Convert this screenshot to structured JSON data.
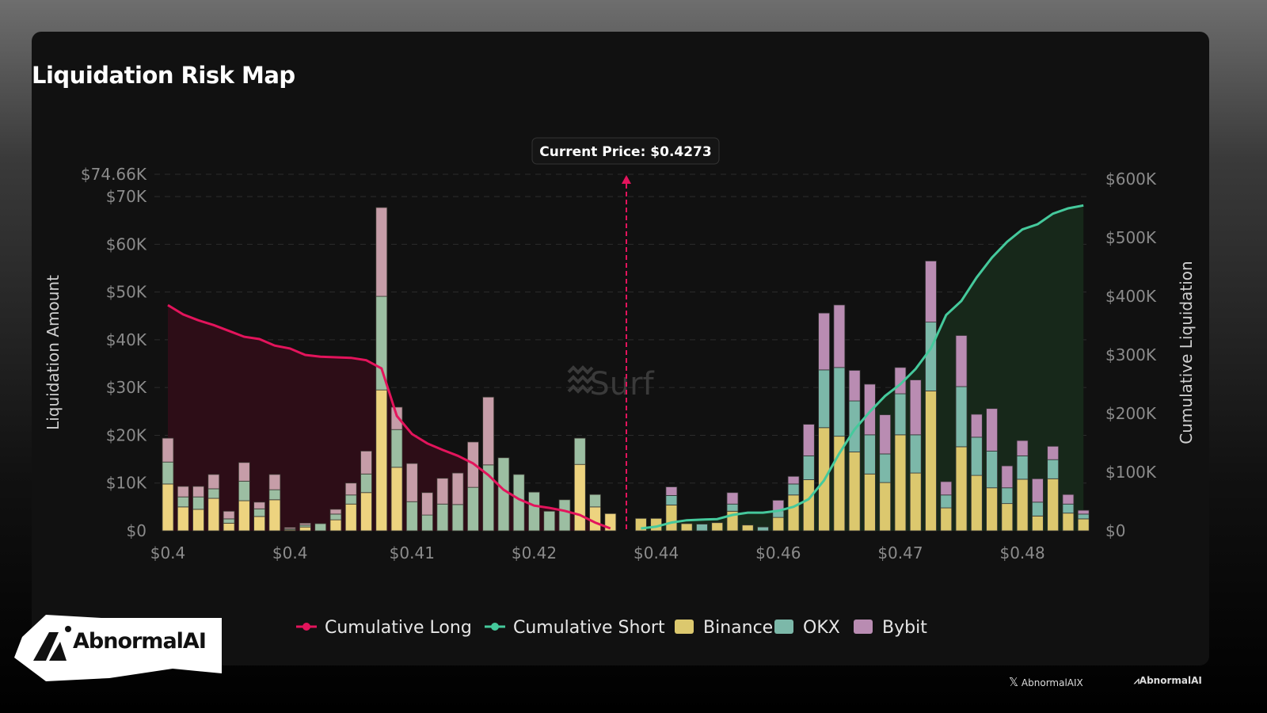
{
  "title": "Liquidation Risk Map",
  "watermark": "Surf",
  "brand": {
    "logo_text": "AbnormalAI",
    "footer_handle": "AbnormalAIX",
    "footer_logo": "AbnormalAI"
  },
  "colors": {
    "binance": "#dcc86e",
    "okx": "#7cb8a9",
    "bybit": "#b98cb2",
    "long": "#e3145c",
    "short": "#45c99c",
    "long_fill": "#2d0d17",
    "short_fill": "#17281a"
  },
  "chart_data": {
    "type": "bar",
    "title": "Liquidation Risk Map",
    "annotation": "Current Price: $0.4273",
    "current_price_slot": 30,
    "ylabel": "Liquidation Amount",
    "y2label": "Cumulative Liquidation",
    "ylim": [
      0,
      74.66
    ],
    "y2lim": [
      0,
      600
    ],
    "y_ticks": [
      "$0",
      "$10K",
      "$20K",
      "$30K",
      "$40K",
      "$50K",
      "$60K",
      "$70K",
      "$74.66K"
    ],
    "y_tick_values": [
      0,
      10,
      20,
      30,
      40,
      50,
      60,
      70,
      74.66
    ],
    "y2_ticks": [
      "$0",
      "$100K",
      "$200K",
      "$300K",
      "$400K",
      "$500K",
      "$600K"
    ],
    "y2_tick_values": [
      0,
      100,
      200,
      300,
      400,
      500,
      600
    ],
    "x_ticks": [
      "$0.4",
      "$0.4",
      "$0.41",
      "$0.42",
      "$0.44",
      "$0.46",
      "$0.47",
      "$0.48"
    ],
    "x_tick_slots": [
      0,
      8,
      16,
      24,
      32,
      40,
      48,
      56
    ],
    "units": "K USD",
    "legend": [
      "Cumulative Long",
      "Cumulative Short",
      "Binance",
      "OKX",
      "Bybit"
    ],
    "legend_position": "bottom",
    "grid": true,
    "slots": 61,
    "series": [
      {
        "name": "Binance",
        "values": [
          9.8,
          5,
          4.5,
          6.8,
          1.6,
          6.3,
          3,
          6.5,
          0.2,
          0.8,
          0,
          2.3,
          5.6,
          8,
          29.5,
          13.3,
          0,
          0,
          0,
          0,
          0,
          0,
          0,
          0,
          0,
          0,
          0,
          13.9,
          5,
          3.6,
          null,
          2.6,
          2.6,
          5.4,
          1.5,
          0,
          1.7,
          4.1,
          1.2,
          0,
          2.8,
          7.5,
          10.7,
          21.6,
          19.8,
          16.5,
          11.9,
          10.1,
          20.1,
          12.1,
          29.3,
          4.8,
          17.6,
          11.6,
          9,
          5.7,
          10.8,
          3.1,
          10.9,
          3.7,
          2.5
        ]
      },
      {
        "name": "OKX",
        "values": [
          4.6,
          2.1,
          2.6,
          2,
          0.9,
          4.1,
          1.6,
          2.1,
          0.2,
          0.4,
          1.5,
          1.2,
          1.9,
          3.9,
          19.6,
          7.9,
          6.1,
          3.3,
          5.6,
          5.5,
          9.1,
          13.8,
          15.3,
          11.8,
          8.1,
          4.1,
          6.5,
          5.5,
          2.6,
          0,
          null,
          0,
          0,
          2,
          0,
          1.4,
          0,
          1.5,
          0,
          0.8,
          1.4,
          2.3,
          5,
          12.1,
          14.4,
          10.7,
          8.2,
          6,
          8.6,
          8,
          14.4,
          2.7,
          12.6,
          8,
          7.7,
          3.3,
          4.9,
          2.9,
          4,
          1.9,
          1
        ]
      },
      {
        "name": "Bybit",
        "values": [
          5,
          2.2,
          2.2,
          3,
          1.6,
          3.9,
          1.4,
          3.2,
          0.3,
          0.4,
          0,
          1,
          2.5,
          4.8,
          18.6,
          4.7,
          8,
          4.7,
          5.4,
          6.6,
          9.5,
          14.2,
          0,
          0,
          0,
          0,
          0,
          0,
          0,
          0,
          null,
          0,
          0,
          1.8,
          0,
          0,
          0,
          2.4,
          0,
          0,
          2.2,
          1.6,
          6.6,
          11.9,
          13.1,
          6.4,
          10.6,
          8.2,
          5.5,
          11.5,
          12.8,
          2.8,
          10.7,
          4.8,
          8.9,
          4.6,
          3.2,
          4.9,
          2.8,
          2,
          0.8
        ]
      },
      {
        "name": "Cumulative Long",
        "axis": "right",
        "values": [
          385,
          369,
          359,
          351,
          341,
          331,
          327,
          316,
          311,
          300,
          297,
          296,
          295,
          291,
          277,
          196,
          165,
          149,
          138,
          128,
          115,
          95,
          70,
          54,
          43,
          39,
          34,
          27,
          14,
          4
        ]
      },
      {
        "name": "Cumulative Short",
        "axis": "right",
        "start_slot": 31,
        "values": [
          4,
          7,
          14,
          18,
          19,
          20,
          27,
          31,
          31,
          34,
          41,
          54,
          86,
          132,
          173,
          203,
          230,
          250,
          276,
          311,
          368,
          392,
          432,
          466,
          493,
          514,
          523,
          541,
          550,
          555
        ]
      }
    ]
  }
}
